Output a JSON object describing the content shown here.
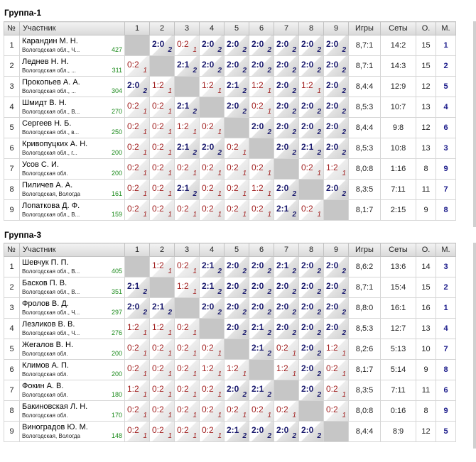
{
  "headers": {
    "no": "№",
    "participant": "Участник",
    "cols": [
      "1",
      "2",
      "3",
      "4",
      "5",
      "6",
      "7",
      "8",
      "9"
    ],
    "games": "Игры",
    "sets": "Сеты",
    "points": "О.",
    "place": "М."
  },
  "groups": [
    {
      "title": "Группа-1",
      "rows": [
        {
          "no": "1",
          "name": "Карандин М. Н.",
          "city": "Вологодская обл., Ч...",
          "rating": "427",
          "cells": [
            null,
            "2:0",
            "0:2",
            "2:0",
            "2:0",
            "2:0",
            "2:0",
            "2:0",
            "2:0"
          ],
          "games": "8,7:1",
          "sets": "14:2",
          "points": "15",
          "place": "1"
        },
        {
          "no": "2",
          "name": "Леднев Н. Н.",
          "city": "Вологодская обл., ...",
          "rating": "311",
          "cells": [
            "0:2",
            null,
            "2:1",
            "2:0",
            "2:0",
            "2:0",
            "2:0",
            "2:0",
            "2:0"
          ],
          "games": "8,7:1",
          "sets": "14:3",
          "points": "15",
          "place": "2"
        },
        {
          "no": "3",
          "name": "Прокопьев А. А.",
          "city": "Вологодская обл., ...",
          "rating": "304",
          "cells": [
            "2:0",
            "1:2",
            null,
            "1:2",
            "2:1",
            "1:2",
            "2:0",
            "1:2",
            "2:0"
          ],
          "games": "8,4:4",
          "sets": "12:9",
          "points": "12",
          "place": "5"
        },
        {
          "no": "4",
          "name": "Шмидт В. Н.",
          "city": "Вологодская обл., В...",
          "rating": "270",
          "cells": [
            "0:2",
            "0:2",
            "2:1",
            null,
            "2:0",
            "0:2",
            "2:0",
            "2:0",
            "2:0"
          ],
          "games": "8,5:3",
          "sets": "10:7",
          "points": "13",
          "place": "4"
        },
        {
          "no": "5",
          "name": "Сергеев Н. Б.",
          "city": "Вологодская обл., в...",
          "rating": "250",
          "cells": [
            "0:2",
            "0:2",
            "1:2",
            "0:2",
            null,
            "2:0",
            "2:0",
            "2:0",
            "2:0"
          ],
          "games": "8,4:4",
          "sets": "9:8",
          "points": "12",
          "place": "6"
        },
        {
          "no": "6",
          "name": "Кривопуцких А. Н.",
          "city": "Вологодская обл., г...",
          "rating": "200",
          "cells": [
            "0:2",
            "0:2",
            "2:1",
            "2:0",
            "0:2",
            null,
            "2:0",
            "2:1",
            "2:0"
          ],
          "games": "8,5:3",
          "sets": "10:8",
          "points": "13",
          "place": "3"
        },
        {
          "no": "7",
          "name": "Усов С. И.",
          "city": "Вологодская обл.",
          "rating": "200",
          "cells": [
            "0:2",
            "0:2",
            "0:2",
            "0:2",
            "0:2",
            "0:2",
            null,
            "0:2",
            "1:2"
          ],
          "games": "8,0:8",
          "sets": "1:16",
          "points": "8",
          "place": "9"
        },
        {
          "no": "8",
          "name": "Пиличев А. А.",
          "city": "Вологодская, Вологда",
          "rating": "161",
          "cells": [
            "0:2",
            "0:2",
            "2:1",
            "0:2",
            "0:2",
            "1:2",
            "2:0",
            null,
            "2:0"
          ],
          "games": "8,3:5",
          "sets": "7:11",
          "points": "11",
          "place": "7"
        },
        {
          "no": "9",
          "name": "Лопаткова Д. Ф.",
          "city": "Вологодская обл., В...",
          "rating": "159",
          "cells": [
            "0:2",
            "0:2",
            "0:2",
            "0:2",
            "0:2",
            "0:2",
            "2:1",
            "0:2",
            null
          ],
          "games": "8,1:7",
          "sets": "2:15",
          "points": "9",
          "place": "8"
        }
      ]
    },
    {
      "title": "Группа-3",
      "rows": [
        {
          "no": "1",
          "name": "Шевчук П. П.",
          "city": "Вологодская обл., В...",
          "rating": "405",
          "cells": [
            null,
            "1:2",
            "0:2",
            "2:1",
            "2:0",
            "2:0",
            "2:1",
            "2:0",
            "2:0"
          ],
          "games": "8,6:2",
          "sets": "13:6",
          "points": "14",
          "place": "3"
        },
        {
          "no": "2",
          "name": "Басков П. В.",
          "city": "Вологодская обл., В...",
          "rating": "351",
          "cells": [
            "2:1",
            null,
            "1:2",
            "2:1",
            "2:0",
            "2:0",
            "2:0",
            "2:0",
            "2:0"
          ],
          "games": "8,7:1",
          "sets": "15:4",
          "points": "15",
          "place": "2"
        },
        {
          "no": "3",
          "name": "Фролов В. Д.",
          "city": "Вологодская обл., Ч...",
          "rating": "297",
          "cells": [
            "2:0",
            "2:1",
            null,
            "2:0",
            "2:0",
            "2:0",
            "2:0",
            "2:0",
            "2:0"
          ],
          "games": "8,8:0",
          "sets": "16:1",
          "points": "16",
          "place": "1"
        },
        {
          "no": "4",
          "name": "Лезликов В. В.",
          "city": "Вологодская обл., Ч...",
          "rating": "276",
          "cells": [
            "1:2",
            "1:2",
            "0:2",
            null,
            "2:0",
            "2:1",
            "2:0",
            "2:0",
            "2:0"
          ],
          "games": "8,5:3",
          "sets": "12:7",
          "points": "13",
          "place": "4"
        },
        {
          "no": "5",
          "name": "Жегалов В. Н.",
          "city": "Вологодская обл.",
          "rating": "200",
          "cells": [
            "0:2",
            "0:2",
            "0:2",
            "0:2",
            null,
            "2:1",
            "0:2",
            "2:0",
            "1:2"
          ],
          "games": "8,2:6",
          "sets": "5:13",
          "points": "10",
          "place": "7"
        },
        {
          "no": "6",
          "name": "Климов А. П.",
          "city": "Вологодская обл.",
          "rating": "200",
          "cells": [
            "0:2",
            "0:2",
            "0:2",
            "1:2",
            "1:2",
            null,
            "1:2",
            "2:0",
            "0:2"
          ],
          "games": "8,1:7",
          "sets": "5:14",
          "points": "9",
          "place": "8"
        },
        {
          "no": "7",
          "name": "Фокин А. В.",
          "city": "Вологодская обл.",
          "rating": "180",
          "cells": [
            "1:2",
            "0:2",
            "0:2",
            "0:2",
            "2:0",
            "2:1",
            null,
            "2:0",
            "0:2"
          ],
          "games": "8,3:5",
          "sets": "7:11",
          "points": "11",
          "place": "6"
        },
        {
          "no": "8",
          "name": "Бакиновская Л. Н.",
          "city": "Вологодская обл.",
          "rating": "170",
          "cells": [
            "0:2",
            "0:2",
            "0:2",
            "0:2",
            "0:2",
            "0:2",
            "0:2",
            null,
            "0:2"
          ],
          "games": "8,0:8",
          "sets": "0:16",
          "points": "8",
          "place": "9"
        },
        {
          "no": "9",
          "name": "Виноградов Ю. М.",
          "city": "Вологодская, Вологда",
          "rating": "148",
          "cells": [
            "0:2",
            "0:2",
            "0:2",
            "0:2",
            "2:1",
            "2:0",
            "2:0",
            "2:0",
            null
          ],
          "games": "8,4:4",
          "sets": "8:9",
          "points": "12",
          "place": "5"
        }
      ]
    }
  ]
}
